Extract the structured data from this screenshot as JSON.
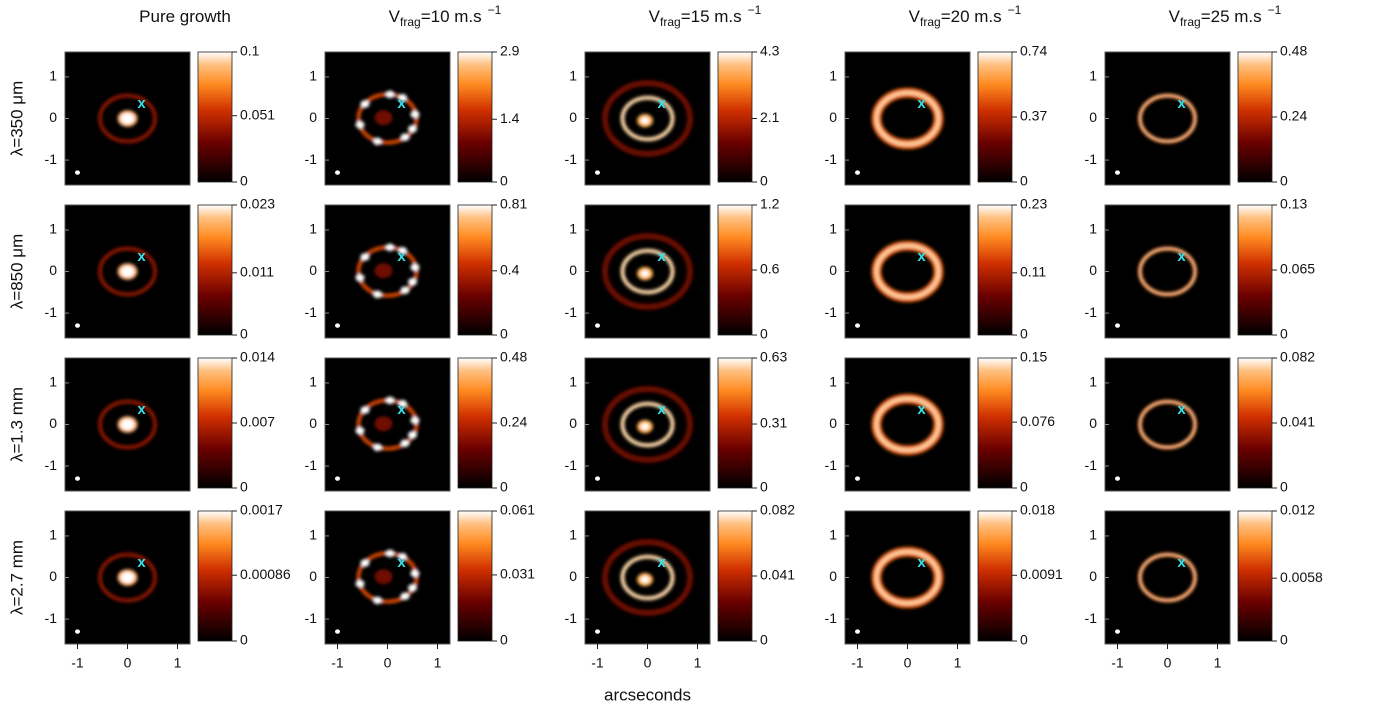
{
  "chart_data": [
    {
      "type": "heatmap",
      "title": "Pure growth",
      "ylabel": "λ=350 μm",
      "annotations": [
        "x"
      ],
      "xlim": [
        -1.25,
        1.25
      ],
      "ylim": [
        -1.6,
        1.6
      ],
      "yticks": [
        -1,
        0,
        1
      ],
      "colorbar": {
        "lim": [
          0,
          0.1
        ],
        "ticks": [
          0,
          0.051,
          0.1
        ]
      }
    },
    {
      "type": "heatmap",
      "title": "V",
      "title_sub": "frag",
      "title_rest": "=10 m.s",
      "title_sup": "−1",
      "annotations": [
        "x"
      ],
      "xlim": [
        -1.25,
        1.25
      ],
      "ylim": [
        -1.6,
        1.6
      ],
      "yticks": [
        -1,
        0,
        1
      ],
      "colorbar": {
        "lim": [
          0,
          2.9
        ],
        "ticks": [
          0,
          1.4,
          2.9
        ]
      }
    },
    {
      "type": "heatmap",
      "title": "V",
      "title_sub": "frag",
      "title_rest": "=15 m.s",
      "title_sup": "−1",
      "annotations": [
        "x"
      ],
      "xlim": [
        -1.25,
        1.25
      ],
      "ylim": [
        -1.6,
        1.6
      ],
      "yticks": [
        -1,
        0,
        1
      ],
      "colorbar": {
        "lim": [
          0,
          4.3
        ],
        "ticks": [
          0,
          2.1,
          4.3
        ]
      }
    },
    {
      "type": "heatmap",
      "title": "V",
      "title_sub": "frag",
      "title_rest": "=20 m.s",
      "title_sup": "−1",
      "annotations": [
        "x"
      ],
      "xlim": [
        -1.25,
        1.25
      ],
      "ylim": [
        -1.6,
        1.6
      ],
      "yticks": [
        -1,
        0,
        1
      ],
      "colorbar": {
        "lim": [
          0,
          0.74
        ],
        "ticks": [
          0,
          0.37,
          0.74
        ]
      }
    },
    {
      "type": "heatmap",
      "title": "V",
      "title_sub": "frag",
      "title_rest": "=25 m.s",
      "title_sup": "−1",
      "annotations": [
        "x"
      ],
      "xlim": [
        -1.25,
        1.25
      ],
      "ylim": [
        -1.6,
        1.6
      ],
      "yticks": [
        -1,
        0,
        1
      ],
      "colorbar": {
        "lim": [
          0,
          0.48
        ],
        "ticks": [
          0,
          0.24,
          0.48
        ]
      }
    },
    {
      "type": "heatmap",
      "ylabel": "λ=850 μm",
      "annotations": [
        "x"
      ],
      "xlim": [
        -1.25,
        1.25
      ],
      "ylim": [
        -1.6,
        1.6
      ],
      "yticks": [
        -1,
        0,
        1
      ],
      "colorbar": {
        "lim": [
          0,
          0.023
        ],
        "ticks": [
          0,
          0.011,
          0.023
        ]
      }
    },
    {
      "type": "heatmap",
      "annotations": [
        "x"
      ],
      "xlim": [
        -1.25,
        1.25
      ],
      "ylim": [
        -1.6,
        1.6
      ],
      "yticks": [
        -1,
        0,
        1
      ],
      "colorbar": {
        "lim": [
          0,
          0.81
        ],
        "ticks": [
          0,
          0.4,
          0.81
        ]
      }
    },
    {
      "type": "heatmap",
      "annotations": [
        "x"
      ],
      "xlim": [
        -1.25,
        1.25
      ],
      "ylim": [
        -1.6,
        1.6
      ],
      "yticks": [
        -1,
        0,
        1
      ],
      "colorbar": {
        "lim": [
          0,
          1.2
        ],
        "ticks": [
          0,
          0.6,
          1.2
        ]
      }
    },
    {
      "type": "heatmap",
      "annotations": [
        "x"
      ],
      "xlim": [
        -1.25,
        1.25
      ],
      "ylim": [
        -1.6,
        1.6
      ],
      "yticks": [
        -1,
        0,
        1
      ],
      "colorbar": {
        "lim": [
          0,
          0.23
        ],
        "ticks": [
          0,
          0.11,
          0.23
        ]
      }
    },
    {
      "type": "heatmap",
      "annotations": [
        "x"
      ],
      "xlim": [
        -1.25,
        1.25
      ],
      "ylim": [
        -1.6,
        1.6
      ],
      "yticks": [
        -1,
        0,
        1
      ],
      "colorbar": {
        "lim": [
          0,
          0.13
        ],
        "ticks": [
          0,
          0.065,
          0.13
        ]
      }
    },
    {
      "type": "heatmap",
      "ylabel": "λ=1.3 mm",
      "annotations": [
        "x"
      ],
      "xlim": [
        -1.25,
        1.25
      ],
      "ylim": [
        -1.6,
        1.6
      ],
      "yticks": [
        -1,
        0,
        1
      ],
      "colorbar": {
        "lim": [
          0,
          0.014
        ],
        "ticks": [
          0,
          0.007,
          0.014
        ]
      }
    },
    {
      "type": "heatmap",
      "annotations": [
        "x"
      ],
      "xlim": [
        -1.25,
        1.25
      ],
      "ylim": [
        -1.6,
        1.6
      ],
      "yticks": [
        -1,
        0,
        1
      ],
      "colorbar": {
        "lim": [
          0,
          0.48
        ],
        "ticks": [
          0,
          0.24,
          0.48
        ]
      }
    },
    {
      "type": "heatmap",
      "annotations": [
        "x"
      ],
      "xlim": [
        -1.25,
        1.25
      ],
      "ylim": [
        -1.6,
        1.6
      ],
      "yticks": [
        -1,
        0,
        1
      ],
      "colorbar": {
        "lim": [
          0,
          0.63
        ],
        "ticks": [
          0,
          0.31,
          0.63
        ]
      }
    },
    {
      "type": "heatmap",
      "annotations": [
        "x"
      ],
      "xlim": [
        -1.25,
        1.25
      ],
      "ylim": [
        -1.6,
        1.6
      ],
      "yticks": [
        -1,
        0,
        1
      ],
      "colorbar": {
        "lim": [
          0,
          0.15
        ],
        "ticks": [
          0,
          0.076,
          0.15
        ]
      }
    },
    {
      "type": "heatmap",
      "annotations": [
        "x"
      ],
      "xlim": [
        -1.25,
        1.25
      ],
      "ylim": [
        -1.6,
        1.6
      ],
      "yticks": [
        -1,
        0,
        1
      ],
      "colorbar": {
        "lim": [
          0,
          0.082
        ],
        "ticks": [
          0,
          0.041,
          0.082
        ]
      }
    },
    {
      "type": "heatmap",
      "ylabel": "λ=2.7 mm",
      "annotations": [
        "x"
      ],
      "xlim": [
        -1.25,
        1.25
      ],
      "ylim": [
        -1.6,
        1.6
      ],
      "xticks": [
        -1,
        0,
        1
      ],
      "yticks": [
        -1,
        0,
        1
      ],
      "colorbar": {
        "lim": [
          0,
          0.0017
        ],
        "ticks": [
          0,
          0.00086,
          0.0017
        ]
      }
    },
    {
      "type": "heatmap",
      "annotations": [
        "x"
      ],
      "xlim": [
        -1.25,
        1.25
      ],
      "ylim": [
        -1.6,
        1.6
      ],
      "xticks": [
        -1,
        0,
        1
      ],
      "yticks": [
        -1,
        0,
        1
      ],
      "colorbar": {
        "lim": [
          0,
          0.061
        ],
        "ticks": [
          0,
          0.031,
          0.061
        ]
      }
    },
    {
      "type": "heatmap",
      "xlabel": "arcseconds",
      "annotations": [
        "x"
      ],
      "xlim": [
        -1.25,
        1.25
      ],
      "ylim": [
        -1.6,
        1.6
      ],
      "xticks": [
        -1,
        0,
        1
      ],
      "yticks": [
        -1,
        0,
        1
      ],
      "colorbar": {
        "lim": [
          0,
          0.082
        ],
        "ticks": [
          0,
          0.041,
          0.082
        ]
      }
    },
    {
      "type": "heatmap",
      "annotations": [
        "x"
      ],
      "xlim": [
        -1.25,
        1.25
      ],
      "ylim": [
        -1.6,
        1.6
      ],
      "xticks": [
        -1,
        0,
        1
      ],
      "yticks": [
        -1,
        0,
        1
      ],
      "colorbar": {
        "lim": [
          0,
          0.018
        ],
        "ticks": [
          0,
          0.0091,
          0.018
        ]
      }
    },
    {
      "type": "heatmap",
      "annotations": [
        "x"
      ],
      "xlim": [
        -1.25,
        1.25
      ],
      "ylim": [
        -1.6,
        1.6
      ],
      "xticks": [
        -1,
        0,
        1
      ],
      "yticks": [
        -1,
        0,
        1
      ],
      "colorbar": {
        "lim": [
          0,
          0.012
        ],
        "ticks": [
          0,
          0.0058,
          0.012
        ]
      }
    }
  ]
}
